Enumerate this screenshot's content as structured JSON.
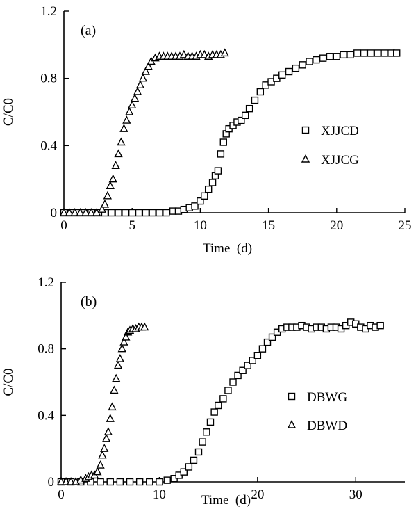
{
  "chart_data": [
    {
      "type": "scatter",
      "panel_label": "(a)",
      "xlabel": "Time  (d)",
      "ylabel": "C/C0",
      "xlim": [
        0,
        25
      ],
      "ylim": [
        0,
        1.2
      ],
      "xticks": [
        0,
        5,
        10,
        15,
        20,
        25
      ],
      "yticks": [
        0,
        0.4,
        0.8,
        1.2
      ],
      "xtick_labels": [
        "0",
        "5",
        "10",
        "15",
        "20",
        "25"
      ],
      "ytick_labels": [
        "0",
        "0.4",
        "0.8",
        "1.2"
      ],
      "grid": false,
      "legend": "right",
      "series": [
        {
          "name": "XJJCD",
          "marker": "square",
          "x": [
            0,
            0.5,
            1,
            1.5,
            2,
            2.5,
            3,
            3.5,
            4,
            4.5,
            5,
            5.5,
            6,
            6.5,
            7,
            7.5,
            8,
            8.4,
            8.8,
            9.2,
            9.6,
            10,
            10.3,
            10.6,
            10.9,
            11.1,
            11.3,
            11.5,
            11.7,
            11.9,
            12.1,
            12.4,
            12.7,
            13,
            13.3,
            13.6,
            14,
            14.4,
            14.8,
            15.2,
            15.6,
            16,
            16.5,
            17,
            17.5,
            18,
            18.5,
            19,
            19.5,
            20,
            20.5,
            21,
            21.5,
            22,
            22.5,
            23,
            23.5,
            24,
            24.4
          ],
          "y": [
            0,
            0,
            0,
            0,
            0,
            0,
            0,
            0,
            0,
            0,
            0,
            0,
            0,
            0,
            0,
            0,
            0.01,
            0.01,
            0.02,
            0.03,
            0.04,
            0.07,
            0.1,
            0.14,
            0.18,
            0.22,
            0.25,
            0.35,
            0.42,
            0.47,
            0.5,
            0.52,
            0.54,
            0.55,
            0.58,
            0.62,
            0.67,
            0.72,
            0.76,
            0.78,
            0.8,
            0.82,
            0.84,
            0.86,
            0.88,
            0.9,
            0.91,
            0.92,
            0.93,
            0.93,
            0.94,
            0.94,
            0.95,
            0.95,
            0.95,
            0.95,
            0.95,
            0.95,
            0.95
          ]
        },
        {
          "name": "XJJCG",
          "marker": "triangle",
          "x": [
            0,
            0.4,
            0.8,
            1.2,
            1.6,
            2,
            2.4,
            2.8,
            3,
            3.2,
            3.4,
            3.6,
            3.8,
            4,
            4.2,
            4.4,
            4.6,
            4.8,
            5,
            5.2,
            5.4,
            5.6,
            5.8,
            6,
            6.2,
            6.4,
            6.7,
            7,
            7.3,
            7.6,
            7.9,
            8.2,
            8.5,
            8.8,
            9.1,
            9.4,
            9.7,
            10,
            10.3,
            10.6,
            10.9,
            11.2,
            11.5,
            11.8
          ],
          "y": [
            0,
            0,
            0,
            0,
            0,
            0,
            0,
            0.02,
            0.05,
            0.1,
            0.16,
            0.2,
            0.28,
            0.35,
            0.42,
            0.5,
            0.55,
            0.6,
            0.64,
            0.68,
            0.72,
            0.76,
            0.8,
            0.84,
            0.87,
            0.9,
            0.92,
            0.93,
            0.93,
            0.93,
            0.93,
            0.93,
            0.93,
            0.94,
            0.93,
            0.93,
            0.93,
            0.94,
            0.94,
            0.93,
            0.94,
            0.94,
            0.94,
            0.95
          ]
        }
      ]
    },
    {
      "type": "scatter",
      "panel_label": "(b)",
      "xlabel": "Time  (d)",
      "ylabel": "C/C0",
      "xlim": [
        0,
        35
      ],
      "ylim": [
        0,
        1.2
      ],
      "xticks": [
        0,
        10,
        20,
        30
      ],
      "yticks": [
        0,
        0.4,
        0.8,
        1.2
      ],
      "xtick_labels": [
        "0",
        "10",
        "20",
        "30"
      ],
      "ytick_labels": [
        "0",
        "0.4",
        "0.8",
        "1.2"
      ],
      "grid": false,
      "legend": "right",
      "series": [
        {
          "name": "DBWG",
          "marker": "square",
          "x": [
            0,
            1,
            2,
            3,
            4,
            5,
            6,
            7,
            8,
            9,
            10,
            10.8,
            11.5,
            12,
            12.5,
            13,
            13.5,
            14,
            14.4,
            14.8,
            15.2,
            15.6,
            16,
            16.5,
            17,
            17.5,
            18,
            18.5,
            19,
            19.5,
            20,
            20.5,
            21,
            21.5,
            22,
            22.5,
            23,
            23.5,
            24,
            24.5,
            25,
            25.5,
            26,
            26.5,
            27,
            27.5,
            28,
            28.5,
            29,
            29.5,
            30,
            30.5,
            31,
            31.5,
            32,
            32.5
          ],
          "y": [
            0,
            0,
            0,
            0,
            0,
            0,
            0,
            0,
            0,
            0,
            0,
            0.01,
            0.02,
            0.04,
            0.06,
            0.09,
            0.13,
            0.18,
            0.24,
            0.3,
            0.36,
            0.42,
            0.46,
            0.5,
            0.55,
            0.6,
            0.64,
            0.67,
            0.7,
            0.73,
            0.76,
            0.8,
            0.84,
            0.87,
            0.9,
            0.92,
            0.93,
            0.93,
            0.93,
            0.94,
            0.93,
            0.92,
            0.93,
            0.93,
            0.92,
            0.93,
            0.93,
            0.92,
            0.94,
            0.96,
            0.95,
            0.93,
            0.92,
            0.94,
            0.93,
            0.94
          ]
        },
        {
          "name": "DBWD",
          "marker": "triangle",
          "x": [
            0,
            0.5,
            1,
            1.5,
            2,
            2.5,
            2.8,
            3.1,
            3.4,
            3.7,
            4,
            4.2,
            4.4,
            4.6,
            4.8,
            5,
            5.2,
            5.4,
            5.6,
            5.8,
            6,
            6.2,
            6.4,
            6.6,
            6.8,
            7,
            7.3,
            7.6,
            7.9,
            8.2,
            8.5
          ],
          "y": [
            0,
            0,
            0,
            0,
            0.01,
            0.02,
            0.03,
            0.04,
            0.04,
            0.06,
            0.1,
            0.16,
            0.2,
            0.26,
            0.3,
            0.38,
            0.45,
            0.55,
            0.62,
            0.7,
            0.74,
            0.8,
            0.84,
            0.87,
            0.9,
            0.91,
            0.92,
            0.92,
            0.93,
            0.93,
            0.93
          ]
        }
      ]
    }
  ]
}
